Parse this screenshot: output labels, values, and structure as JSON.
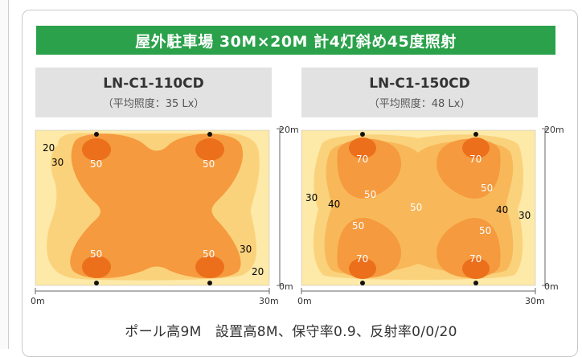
{
  "title": "屋外駐車場 30M×20M 計4灯斜め45度照射",
  "panels": [
    {
      "model": "LN-C1-110CD",
      "avg_lux": "（平均照度：35 Lx）",
      "axis": {
        "x0": "0m",
        "x1": "30m",
        "y0": "0m",
        "y1": "20m"
      },
      "contour_labels": [
        "20",
        "30",
        "50",
        "50",
        "50",
        "50",
        "30",
        "20"
      ]
    },
    {
      "model": "LN-C1-150CD",
      "avg_lux": "（平均照度：48 Lx）",
      "axis": {
        "x0": "0m",
        "x1": "30m",
        "y0": "0m",
        "y1": "20m"
      },
      "contour_labels": [
        "70",
        "70",
        "70",
        "70",
        "50",
        "50",
        "50",
        "50",
        "50",
        "30",
        "40",
        "40",
        "30"
      ]
    }
  ],
  "footer": "ポール高9M　設置高8M、保守率0.9、反射率0/0/20",
  "colors": {
    "banner": "#2aa14a",
    "level_20": "#fde9a8",
    "level_30": "#fbd27c",
    "level_40": "#f8b85a",
    "level_50": "#f59a3e",
    "level_70": "#ec6f1c"
  }
}
